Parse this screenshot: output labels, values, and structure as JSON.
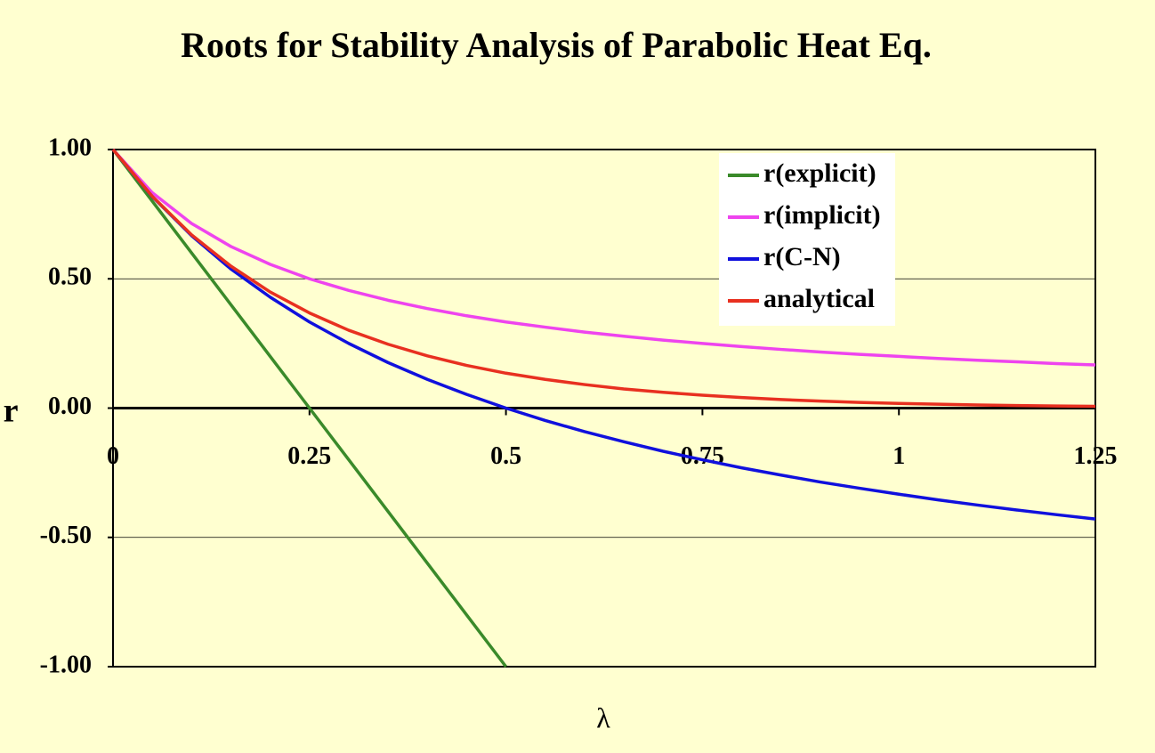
{
  "chart_data": {
    "type": "line",
    "title": "Roots for Stability Analysis of Parabolic Heat Eq.",
    "x_label": "λ",
    "y_label": "r",
    "x": [
      0,
      0.05,
      0.1,
      0.15,
      0.2,
      0.25,
      0.3,
      0.35,
      0.4,
      0.45,
      0.5,
      0.55,
      0.6,
      0.65,
      0.7,
      0.75,
      0.8,
      0.85,
      0.9,
      0.95,
      1,
      1.05,
      1.1,
      1.15,
      1.2,
      1.25
    ],
    "series": [
      {
        "name": "r(explicit)",
        "color": "#3a8a2a",
        "values": [
          1,
          0.8,
          0.6,
          0.4,
          0.2,
          0,
          -0.2,
          -0.4,
          -0.6,
          -0.8,
          -1,
          null,
          null,
          null,
          null,
          null,
          null,
          null,
          null,
          null,
          null,
          null,
          null,
          null,
          null,
          null
        ]
      },
      {
        "name": "r(implicit)",
        "color": "#ee44ee",
        "values": [
          1,
          0.833,
          0.714,
          0.625,
          0.556,
          0.5,
          0.455,
          0.417,
          0.385,
          0.357,
          0.333,
          0.313,
          0.294,
          0.278,
          0.263,
          0.25,
          0.238,
          0.227,
          0.217,
          0.208,
          0.2,
          0.192,
          0.185,
          0.179,
          0.172,
          0.167
        ]
      },
      {
        "name": "r(C-N)",
        "color": "#1010dd",
        "values": [
          1,
          0.818,
          0.667,
          0.538,
          0.429,
          0.333,
          0.25,
          0.176,
          0.111,
          0.053,
          0,
          -0.048,
          -0.091,
          -0.13,
          -0.167,
          -0.2,
          -0.231,
          -0.259,
          -0.286,
          -0.31,
          -0.333,
          -0.355,
          -0.375,
          -0.394,
          -0.412,
          -0.429
        ]
      },
      {
        "name": "analytical",
        "color": "#e83020",
        "values": [
          1,
          0.819,
          0.67,
          0.549,
          0.449,
          0.368,
          0.301,
          0.247,
          0.202,
          0.165,
          0.135,
          0.111,
          0.091,
          0.074,
          0.061,
          0.05,
          0.041,
          0.033,
          0.027,
          0.022,
          0.018,
          0.015,
          0.012,
          0.01,
          0.008,
          0.007
        ]
      }
    ],
    "xlim": [
      0,
      1.25
    ],
    "ylim": [
      -1,
      1
    ],
    "xticks": [
      0,
      0.25,
      0.5,
      0.75,
      1,
      1.25
    ],
    "yticks": [
      {
        "value": -1,
        "label": "-1.00"
      },
      {
        "value": -0.5,
        "label": "-0.50"
      },
      {
        "value": 0,
        "label": "0.00"
      },
      {
        "value": 0.5,
        "label": "0.50"
      },
      {
        "value": 1,
        "label": "1.00"
      }
    ],
    "grid": true,
    "legend": "upper right"
  }
}
